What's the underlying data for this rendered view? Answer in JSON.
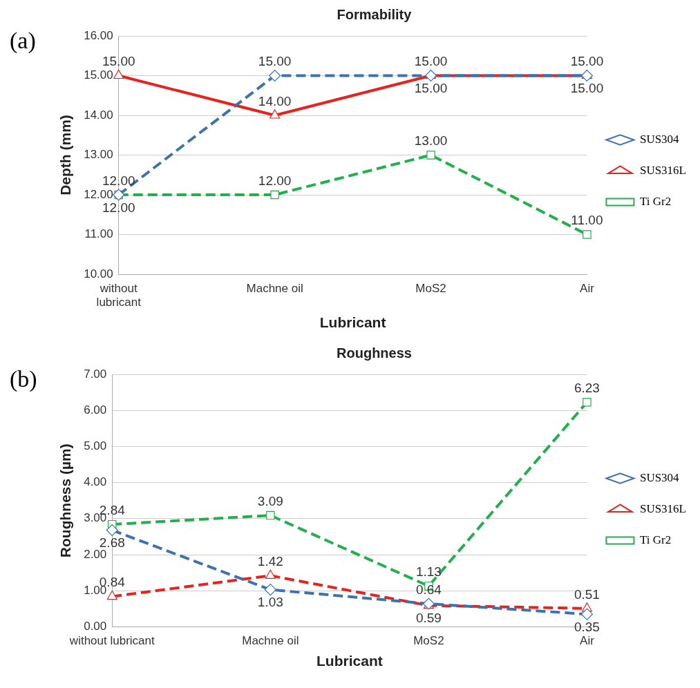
{
  "chart_data": [
    {
      "type": "line",
      "title": "Formability",
      "xlabel": "Lubricant",
      "ylabel": "Depth (mm)",
      "annotations": [
        "(a)"
      ],
      "categories": [
        "without lubricant",
        "Machne oil",
        "MoS2",
        "Air"
      ],
      "series": [
        {
          "name": "SUS304",
          "color": "#3c72b0",
          "values": [
            12,
            15,
            15,
            15
          ],
          "value_labels": [
            "12.00",
            "15.00",
            "15.00",
            "15.00"
          ],
          "marker": "diamond",
          "line_style": "dashed"
        },
        {
          "name": "SUS316L",
          "color": "#e8231e",
          "values": [
            15,
            14,
            15,
            15
          ],
          "value_labels": [
            "15.00",
            "14.00",
            "15.00",
            "15.00"
          ],
          "marker": "triangle",
          "line_style": "solid"
        },
        {
          "name": "Ti Gr2",
          "color": "#22b04c",
          "values": [
            12,
            12,
            13,
            11
          ],
          "value_labels": [
            "12.00",
            "12.00",
            "13.00",
            "11.00"
          ],
          "marker": "square",
          "line_style": "dashed"
        }
      ],
      "ylim": [
        10,
        16
      ],
      "yticks": [
        {
          "value": 10,
          "label": "10.00"
        },
        {
          "value": 11,
          "label": "11.00"
        },
        {
          "value": 12,
          "label": "12.00"
        },
        {
          "value": 13,
          "label": "13.00"
        },
        {
          "value": 14,
          "label": "14.00"
        },
        {
          "value": 15,
          "label": "15.00"
        },
        {
          "value": 16,
          "label": "16.00"
        }
      ],
      "grid": "y",
      "legend": "right"
    },
    {
      "type": "line",
      "title": "Roughness",
      "xlabel": "Lubricant",
      "ylabel": "Roughness (µm)",
      "annotations": [
        "(b)"
      ],
      "categories": [
        "without lubricant",
        "Machne oil",
        "MoS2",
        "Air"
      ],
      "series": [
        {
          "name": "SUS304",
          "color": "#3c72b0",
          "values": [
            2.68,
            1.03,
            0.64,
            0.35
          ],
          "value_labels": [
            "2.68",
            "1.03",
            "0.64",
            "0.35"
          ],
          "marker": "diamond",
          "line_style": "dashed"
        },
        {
          "name": "SUS316L",
          "color": "#e8231e",
          "values": [
            0.84,
            1.42,
            0.59,
            0.51
          ],
          "value_labels": [
            "0.84",
            "1.42",
            "0.59",
            "0.51"
          ],
          "marker": "triangle",
          "line_style": "dashed"
        },
        {
          "name": "Ti Gr2",
          "color": "#22b04c",
          "values": [
            2.84,
            3.09,
            1.13,
            6.23
          ],
          "value_labels": [
            "2.84",
            "3.09",
            "1.13",
            "6.23"
          ],
          "marker": "square",
          "line_style": "dashed"
        }
      ],
      "ylim": [
        0,
        7
      ],
      "yticks": [
        {
          "value": 0,
          "label": "0.00"
        },
        {
          "value": 1,
          "label": "1.00"
        },
        {
          "value": 2,
          "label": "2.00"
        },
        {
          "value": 3,
          "label": "3.00"
        },
        {
          "value": 4,
          "label": "4.00"
        },
        {
          "value": 5,
          "label": "5.00"
        },
        {
          "value": 6,
          "label": "6.00"
        },
        {
          "value": 7,
          "label": "7.00"
        }
      ],
      "grid": "y",
      "legend": "right"
    }
  ]
}
